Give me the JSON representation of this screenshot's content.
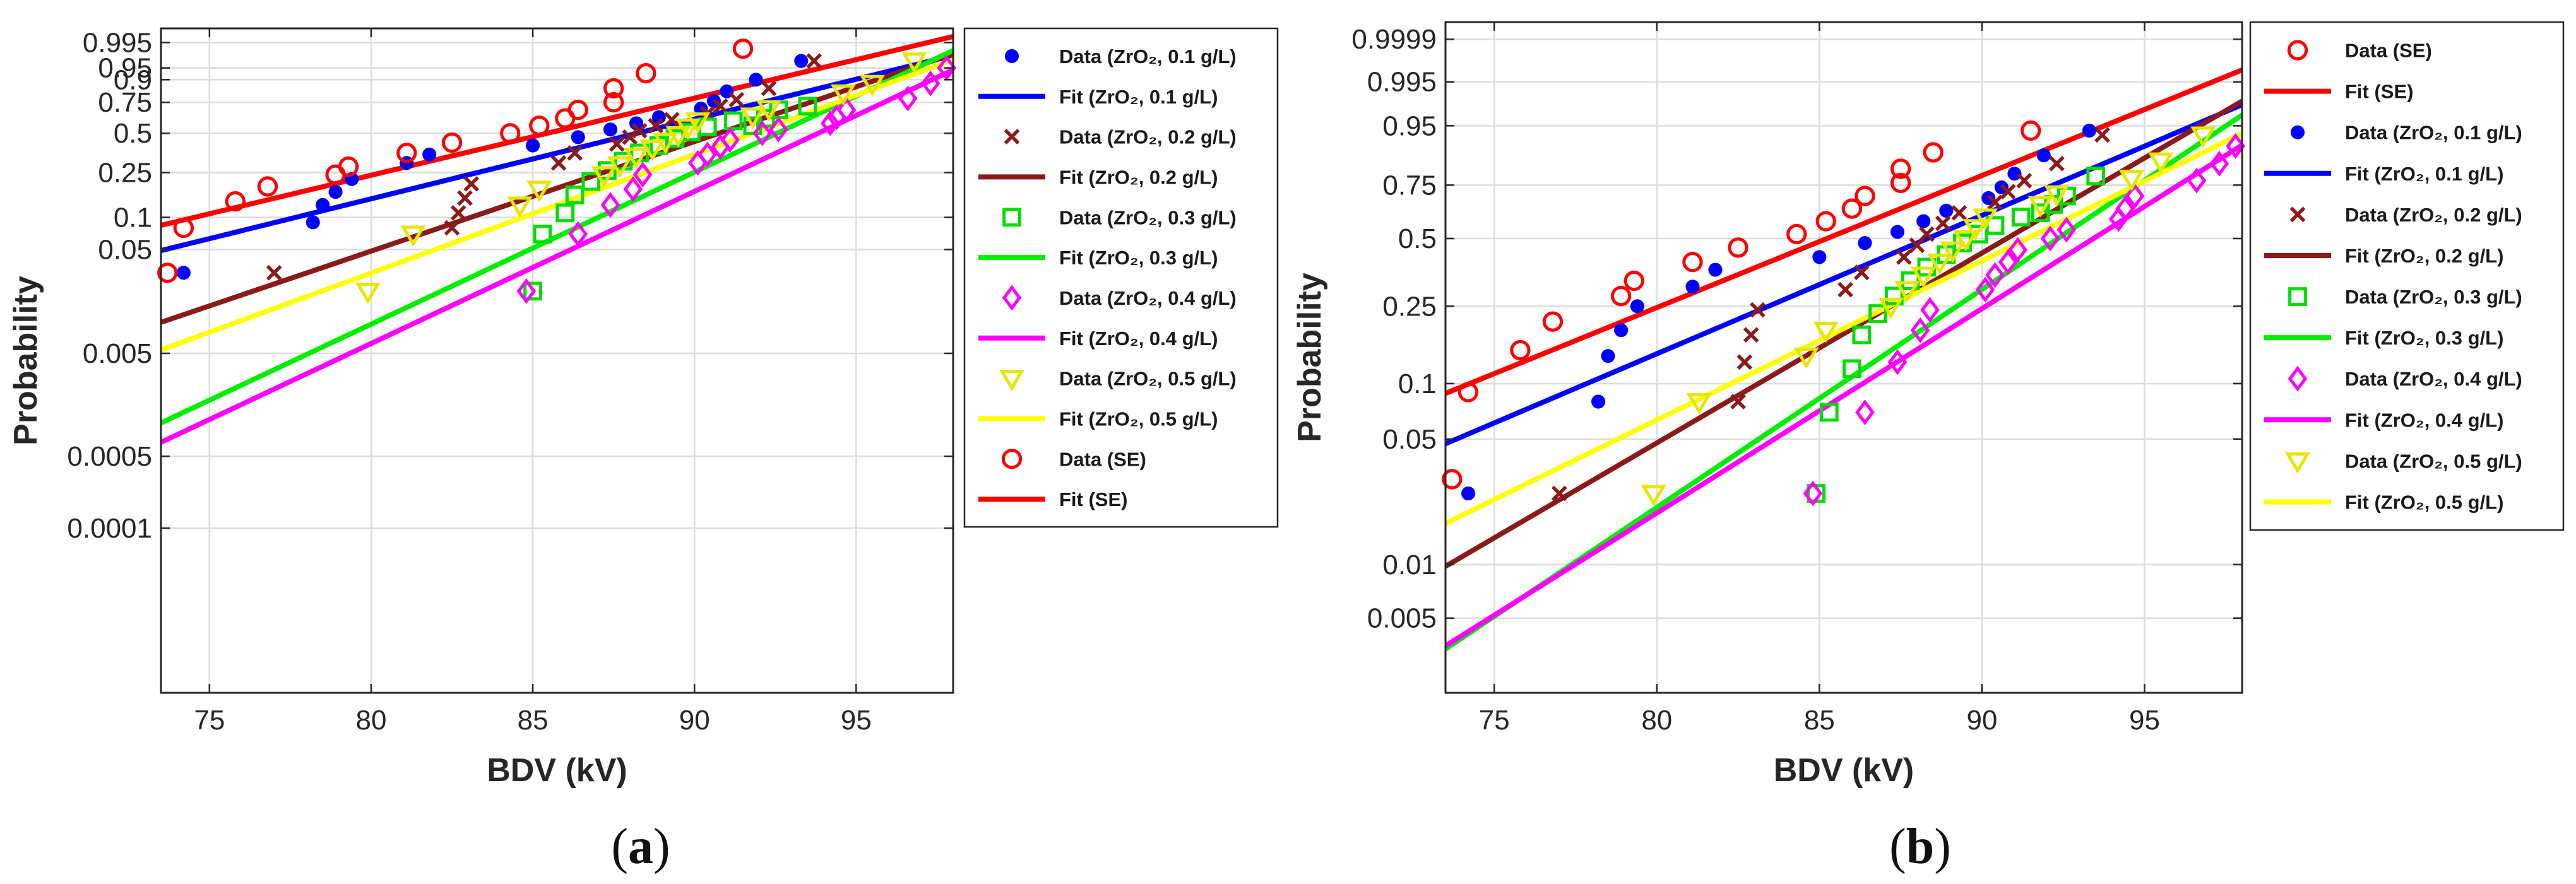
{
  "chart_data": [
    {
      "type": "scatter",
      "panel_label": "a",
      "xlabel": "BDV (kV)",
      "ylabel": "Probability",
      "xlim": [
        73.5,
        98
      ],
      "x_ticks": [
        75,
        80,
        85,
        90,
        95
      ],
      "x_tick_labels": [
        "75",
        "80",
        "85",
        "90",
        "95"
      ],
      "y_scale": "weibull",
      "ylim": [
        2.5e-06,
        0.9993
      ],
      "y_ticks": [
        0.0001,
        0.0005,
        0.005,
        0.05,
        0.1,
        0.25,
        0.5,
        0.75,
        0.9,
        0.95,
        0.995
      ],
      "y_tick_labels": [
        "0.0001",
        "0.0005",
        "0.005",
        "0.05",
        "0.1",
        "0.25",
        "0.5",
        "0.75",
        "0.9",
        "0.95",
        "0.995"
      ],
      "grid": true,
      "legend_position": "outside-right",
      "series": [
        {
          "name": "Data (ZrO₂, 0.1 g/L)",
          "kind": "data",
          "marker": "dot",
          "color": "#0000ff",
          "x": [
            74.2,
            78.2,
            78.5,
            78.9,
            79.4,
            81.1,
            81.8,
            85.0,
            86.4,
            87.4,
            88.2,
            88.9,
            90.2,
            90.6,
            91.0,
            91.9,
            93.3
          ],
          "y": [
            0.03,
            0.09,
            0.13,
            0.17,
            0.22,
            0.3,
            0.35,
            0.41,
            0.47,
            0.53,
            0.58,
            0.63,
            0.7,
            0.76,
            0.83,
            0.9,
            0.97
          ]
        },
        {
          "name": "Fit (ZrO₂, 0.1 g/L)",
          "kind": "fit",
          "color": "#0000ff",
          "eta": 89.5,
          "beta": 15.2
        },
        {
          "name": "Data (ZrO₂, 0.2 g/L)",
          "kind": "data",
          "marker": "x",
          "color": "#8b1a1a",
          "x": [
            77.0,
            82.5,
            82.7,
            82.9,
            83.1,
            85.8,
            86.3,
            87.6,
            88.0,
            88.3,
            88.8,
            89.3,
            90.4,
            90.8,
            91.3,
            92.3,
            93.7
          ],
          "y": [
            0.03,
            0.08,
            0.11,
            0.15,
            0.2,
            0.3,
            0.36,
            0.42,
            0.47,
            0.52,
            0.56,
            0.61,
            0.66,
            0.72,
            0.77,
            0.85,
            0.97
          ]
        },
        {
          "name": "Fit (ZrO₂, 0.2 g/L)",
          "kind": "fit",
          "color": "#8b1a1a",
          "eta": 91.6,
          "beta": 20.9
        },
        {
          "name": "Data (ZrO₂, 0.3 g/L)",
          "kind": "data",
          "marker": "square",
          "color": "#00dd00",
          "x": [
            85.0,
            85.3,
            86.0,
            86.3,
            86.8,
            87.3,
            87.8,
            88.3,
            88.9,
            89.4,
            89.9,
            90.4,
            91.2,
            91.8,
            92.2,
            92.6,
            93.5
          ],
          "y": [
            0.02,
            0.07,
            0.11,
            0.16,
            0.21,
            0.26,
            0.31,
            0.36,
            0.41,
            0.46,
            0.51,
            0.55,
            0.6,
            0.56,
            0.62,
            0.69,
            0.72
          ]
        },
        {
          "name": "Fit (ZrO₂, 0.3 g/L)",
          "kind": "fit",
          "color": "#00ee00",
          "eta": 93.1,
          "beta": 29.0
        },
        {
          "name": "Data (ZrO₂, 0.4 g/L)",
          "kind": "data",
          "marker": "diamond",
          "color": "#ff00ff",
          "x": [
            84.8,
            86.4,
            87.4,
            88.1,
            88.4,
            90.1,
            90.4,
            90.8,
            91.1,
            92.1,
            92.6,
            94.2,
            94.4,
            94.7,
            96.6,
            97.3,
            97.8
          ],
          "y": [
            0.02,
            0.07,
            0.13,
            0.18,
            0.24,
            0.3,
            0.35,
            0.4,
            0.45,
            0.5,
            0.53,
            0.58,
            0.63,
            0.69,
            0.78,
            0.88,
            0.95
          ]
        },
        {
          "name": "Fit (ZrO₂, 0.4 g/L)",
          "kind": "fit",
          "color": "#ff00ff",
          "eta": 94.5,
          "beta": 29.0
        },
        {
          "name": "Data (ZrO₂, 0.5 g/L)",
          "kind": "data",
          "marker": "triangle",
          "color": "#e6e600",
          "x": [
            79.9,
            81.3,
            84.6,
            85.2,
            87.2,
            87.7,
            88.2,
            88.7,
            89.1,
            89.5,
            89.8,
            90.1,
            91.8,
            92.3,
            94.6,
            95.5,
            96.8
          ],
          "y": [
            0.02,
            0.07,
            0.13,
            0.18,
            0.24,
            0.29,
            0.34,
            0.39,
            0.44,
            0.49,
            0.55,
            0.6,
            0.64,
            0.7,
            0.82,
            0.88,
            0.97
          ]
        },
        {
          "name": "Fit (ZrO₂, 0.5 g/L)",
          "kind": "fit",
          "color": "#ffff00",
          "eta": 92.6,
          "beta": 22.6
        },
        {
          "name": "Data (SE)",
          "kind": "data",
          "marker": "circle",
          "color": "#ff0000",
          "x": [
            73.7,
            74.2,
            75.8,
            76.8,
            78.9,
            79.3,
            81.1,
            82.5,
            84.3,
            85.2,
            86.0,
            86.4,
            87.5,
            87.5,
            88.5,
            91.5
          ],
          "y": [
            0.03,
            0.08,
            0.14,
            0.19,
            0.24,
            0.28,
            0.36,
            0.43,
            0.5,
            0.56,
            0.62,
            0.69,
            0.75,
            0.85,
            0.93,
            0.99
          ]
        },
        {
          "name": "Fit (SE)",
          "kind": "fit",
          "color": "#ff0000",
          "eta": 86.7,
          "beta": 14.7
        }
      ]
    },
    {
      "type": "scatter",
      "panel_label": "b",
      "xlabel": "BDV (kV)",
      "ylabel": "Probability",
      "xlim": [
        73.5,
        98
      ],
      "x_ticks": [
        75,
        80,
        85,
        90,
        95
      ],
      "x_tick_labels": [
        "75",
        "80",
        "85",
        "90",
        "95"
      ],
      "y_scale": "weibull",
      "ylim": [
        0.0019,
        0.99999
      ],
      "y_ticks": [
        0.005,
        0.01,
        0.05,
        0.1,
        0.25,
        0.5,
        0.75,
        0.95,
        0.995,
        0.9999
      ],
      "y_tick_labels": [
        "0.005",
        "0.01",
        "0.05",
        "0.1",
        "0.25",
        "0.5",
        "0.75",
        "0.95",
        "0.995",
        "0.9999"
      ],
      "grid": true,
      "legend_position": "outside-right",
      "series": [
        {
          "name": "Data (SE)",
          "kind": "data",
          "marker": "circle",
          "color": "#ff0000",
          "x": [
            73.7,
            74.2,
            75.8,
            76.8,
            78.9,
            79.3,
            81.1,
            82.5,
            84.3,
            85.2,
            86.0,
            86.4,
            87.5,
            87.5,
            88.5,
            91.5
          ],
          "y": [
            0.03,
            0.09,
            0.15,
            0.21,
            0.28,
            0.33,
            0.4,
            0.46,
            0.52,
            0.58,
            0.64,
            0.7,
            0.76,
            0.82,
            0.88,
            0.94
          ]
        },
        {
          "name": "Fit (SE)",
          "kind": "fit",
          "color": "#ff0000",
          "eta": 86.5,
          "beta": 14.6
        },
        {
          "name": "Data (ZrO₂, 0.1 g/L)",
          "kind": "data",
          "marker": "dot",
          "color": "#0000ff",
          "x": [
            74.2,
            78.2,
            78.5,
            78.9,
            79.4,
            81.1,
            81.8,
            85.0,
            86.4,
            87.4,
            88.2,
            88.9,
            90.2,
            90.6,
            91.0,
            91.9,
            93.3
          ],
          "y": [
            0.025,
            0.08,
            0.14,
            0.19,
            0.25,
            0.31,
            0.37,
            0.42,
            0.48,
            0.53,
            0.58,
            0.63,
            0.69,
            0.74,
            0.8,
            0.87,
            0.94
          ]
        },
        {
          "name": "Fit (ZrO₂, 0.1 g/L)",
          "kind": "fit",
          "color": "#0000ff",
          "eta": 89.6,
          "beta": 15.3
        },
        {
          "name": "Data (ZrO₂, 0.2 g/L)",
          "kind": "data",
          "marker": "x",
          "color": "#8b1a1a",
          "x": [
            77.0,
            82.5,
            82.7,
            82.9,
            83.1,
            85.8,
            86.3,
            87.6,
            88.0,
            88.3,
            88.8,
            89.3,
            90.4,
            90.8,
            91.3,
            92.3,
            93.7
          ],
          "y": [
            0.025,
            0.08,
            0.13,
            0.18,
            0.24,
            0.3,
            0.36,
            0.42,
            0.47,
            0.52,
            0.57,
            0.62,
            0.67,
            0.72,
            0.77,
            0.84,
            0.93
          ]
        },
        {
          "name": "Fit (ZrO₂, 0.2 g/L)",
          "kind": "fit",
          "color": "#8b1a1a",
          "eta": 91.6,
          "beta": 21.0
        },
        {
          "name": "Data (ZrO₂, 0.3 g/L)",
          "kind": "data",
          "marker": "square",
          "color": "#00dd00",
          "x": [
            84.9,
            85.3,
            86.0,
            86.3,
            86.8,
            87.3,
            87.8,
            88.3,
            88.9,
            89.4,
            89.9,
            90.4,
            91.2,
            91.8,
            92.2,
            92.6,
            93.5
          ],
          "y": [
            0.025,
            0.07,
            0.12,
            0.18,
            0.23,
            0.28,
            0.33,
            0.38,
            0.43,
            0.48,
            0.52,
            0.56,
            0.6,
            0.62,
            0.66,
            0.7,
            0.79
          ]
        },
        {
          "name": "Fit (ZrO₂, 0.3 g/L)",
          "kind": "fit",
          "color": "#00ee00",
          "eta": 93.1,
          "beta": 24.1
        },
        {
          "name": "Data (ZrO₂, 0.4 g/L)",
          "kind": "data",
          "marker": "diamond",
          "color": "#ff00ff",
          "x": [
            84.8,
            86.4,
            87.4,
            88.1,
            88.4,
            90.1,
            90.4,
            90.8,
            91.1,
            92.1,
            92.6,
            94.2,
            94.4,
            94.7,
            96.6,
            97.3,
            97.8
          ],
          "y": [
            0.025,
            0.07,
            0.13,
            0.19,
            0.24,
            0.3,
            0.35,
            0.4,
            0.45,
            0.5,
            0.54,
            0.59,
            0.64,
            0.7,
            0.77,
            0.84,
            0.9
          ]
        },
        {
          "name": "Fit (ZrO₂, 0.4 g/L)",
          "kind": "fit",
          "color": "#ff00ff",
          "eta": 94.4,
          "beta": 22.6
        },
        {
          "name": "Data (ZrO₂, 0.5 g/L)",
          "kind": "data",
          "marker": "triangle",
          "color": "#e6e600",
          "x": [
            79.9,
            81.3,
            84.6,
            85.2,
            87.2,
            87.7,
            88.2,
            88.7,
            89.1,
            89.5,
            89.8,
            90.1,
            91.8,
            92.3,
            94.6,
            95.5,
            96.8
          ],
          "y": [
            0.025,
            0.08,
            0.14,
            0.19,
            0.25,
            0.3,
            0.35,
            0.4,
            0.45,
            0.5,
            0.55,
            0.6,
            0.66,
            0.71,
            0.78,
            0.85,
            0.93
          ]
        },
        {
          "name": "Fit (ZrO₂, 0.5 g/L)",
          "kind": "fit",
          "color": "#ffff00",
          "eta": 92.6,
          "beta": 17.6
        }
      ]
    }
  ]
}
